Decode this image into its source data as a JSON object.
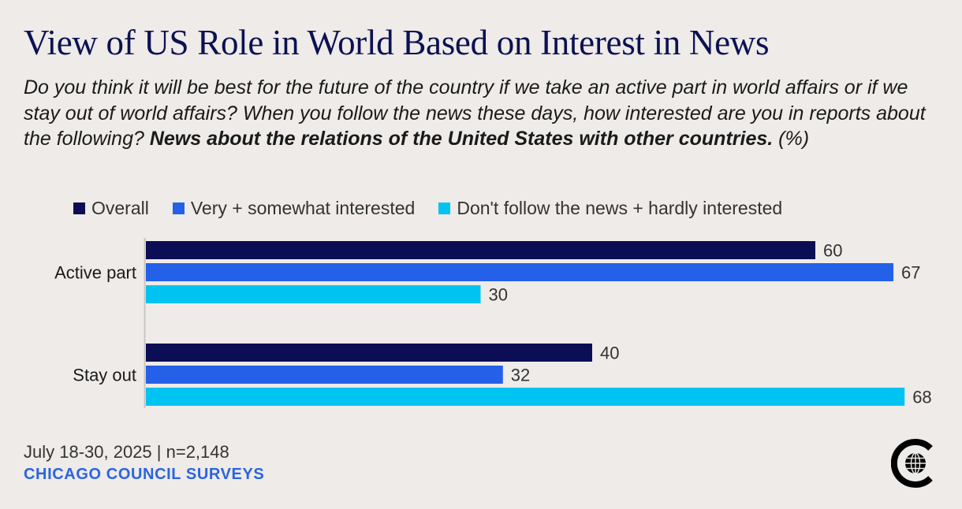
{
  "title": "View of US Role in World Based on Interest in News",
  "subtitle_lead": "Do you think it will be best for the future of the country if we take an active part in world affairs or if we stay out of world affairs? When you follow the news these days, how interested are you in reports about the following? ",
  "subtitle_bold": "News about the relations of the United States with other countries.",
  "subtitle_tail": " (%)",
  "footer": {
    "dates": "July 18-30, 2025 | n=2,148",
    "brand": "CHICAGO COUNCIL SURVEYS"
  },
  "logo_icon": "chicago-council-globe-logo-icon",
  "colors": {
    "overall": "#0b0d55",
    "interested": "#2461e8",
    "not_interested": "#00c3f2"
  },
  "chart_data": {
    "type": "bar",
    "orientation": "horizontal",
    "categories": [
      "Active part",
      "Stay out"
    ],
    "series": [
      {
        "name": "Overall",
        "values": [
          60,
          40
        ]
      },
      {
        "name": "Very + somewhat interested",
        "values": [
          67,
          32
        ]
      },
      {
        "name": "Don't follow the news + hardly interested",
        "values": [
          30,
          68
        ]
      }
    ],
    "xlim": [
      0,
      70
    ],
    "legend": "top",
    "unit": "%"
  }
}
